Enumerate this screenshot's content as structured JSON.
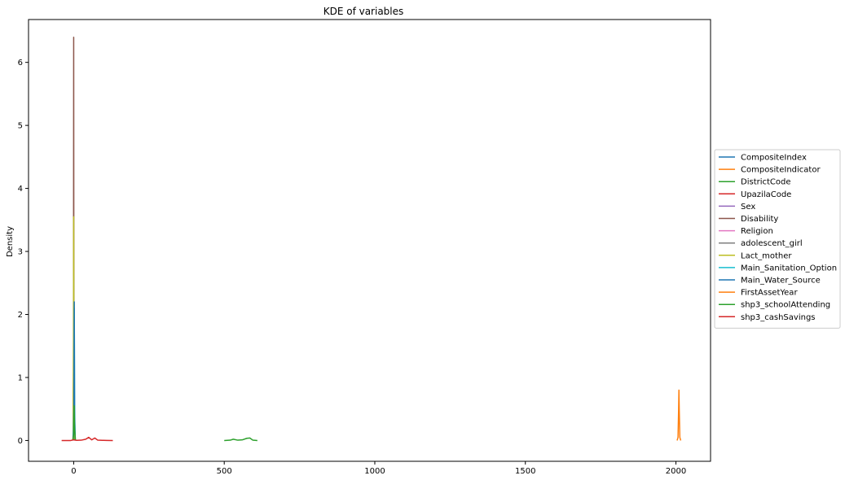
{
  "chart_data": {
    "type": "line",
    "title": "KDE of variables",
    "xlabel": "",
    "ylabel": "Density",
    "xlim": [
      -150,
      2115
    ],
    "ylim": [
      -0.33,
      6.68
    ],
    "xticks": [
      0,
      500,
      1000,
      1500,
      2000
    ],
    "yticks": [
      0,
      1,
      2,
      3,
      4,
      5,
      6
    ],
    "grid": false,
    "legend_position": "center-right-outside",
    "series": [
      {
        "name": "CompositeIndex",
        "color": "#1f77b4",
        "x": [
          -2,
          -0.5,
          0,
          0.5,
          2
        ],
        "y": [
          0,
          0.4,
          0.9,
          0.4,
          0
        ]
      },
      {
        "name": "CompositeIndicator",
        "color": "#ff7f0e",
        "x": [
          -2,
          -0.5,
          0,
          0.5,
          2
        ],
        "y": [
          0,
          1.0,
          2.3,
          1.0,
          0
        ]
      },
      {
        "name": "DistrictCode",
        "color": "#2ca02c",
        "x": [
          500,
          520,
          530,
          545,
          560,
          575,
          585,
          595,
          610
        ],
        "y": [
          0,
          0.005,
          0.02,
          0.005,
          0.01,
          0.035,
          0.04,
          0.005,
          0
        ]
      },
      {
        "name": "UpazilaCode",
        "color": "#d62728",
        "x": [
          -2,
          -0.5,
          0,
          0.5,
          2
        ],
        "y": [
          0,
          0.9,
          2.0,
          0.9,
          0
        ]
      },
      {
        "name": "Sex",
        "color": "#9467bd",
        "x": [
          -2,
          -0.5,
          0,
          0.5,
          1.5,
          2,
          3
        ],
        "y": [
          0,
          0.6,
          1.4,
          0.8,
          0.5,
          1.1,
          0
        ]
      },
      {
        "name": "Disability",
        "color": "#8c564b",
        "x": [
          -2,
          -1,
          -0.5,
          0,
          0.5,
          1,
          2
        ],
        "y": [
          0,
          0.4,
          2.5,
          6.4,
          2.5,
          0.4,
          0
        ]
      },
      {
        "name": "Religion",
        "color": "#e377c2",
        "x": [
          -2,
          -0.5,
          0,
          0.5,
          2
        ],
        "y": [
          0,
          0.7,
          1.5,
          0.7,
          0
        ]
      },
      {
        "name": "adolescent_girl",
        "color": "#7f7f7f",
        "x": [
          -2,
          -0.5,
          0,
          0.5,
          2
        ],
        "y": [
          0,
          1.1,
          2.6,
          1.1,
          0
        ]
      },
      {
        "name": "Lact_mother",
        "color": "#bcbd22",
        "x": [
          -2,
          -0.5,
          0,
          0.5,
          2
        ],
        "y": [
          0,
          1.6,
          3.55,
          1.6,
          0
        ]
      },
      {
        "name": "Main_Sanitation_Option",
        "color": "#17becf",
        "x": [
          -2,
          0,
          1,
          2,
          3,
          5
        ],
        "y": [
          0,
          0.3,
          0.6,
          2.1,
          0.5,
          0
        ]
      },
      {
        "name": "Main_Water_Source",
        "color": "#1f77b4",
        "x": [
          -2,
          0,
          1,
          2,
          3,
          5
        ],
        "y": [
          0,
          0.2,
          0.5,
          2.2,
          0.4,
          0
        ]
      },
      {
        "name": "FirstAssetYear",
        "color": "#ff7f0e",
        "x": [
          2004,
          2007,
          2009,
          2010,
          2011,
          2013,
          2016
        ],
        "y": [
          0,
          0.05,
          0.5,
          0.8,
          0.5,
          0.05,
          0
        ]
      },
      {
        "name": "shp3_schoolAttending",
        "color": "#2ca02c",
        "x": [
          -3,
          0,
          1,
          2,
          3,
          6
        ],
        "y": [
          0,
          0.1,
          0.35,
          0.55,
          0.2,
          0
        ]
      },
      {
        "name": "shp3_cashSavings",
        "color": "#d62728",
        "x": [
          -40,
          -10,
          0,
          5,
          10,
          25,
          40,
          50,
          60,
          70,
          80,
          95,
          110,
          130
        ],
        "y": [
          0,
          0,
          0.01,
          0.005,
          0.003,
          0.005,
          0.02,
          0.05,
          0.01,
          0.04,
          0.005,
          0.003,
          0.001,
          0
        ]
      }
    ]
  }
}
